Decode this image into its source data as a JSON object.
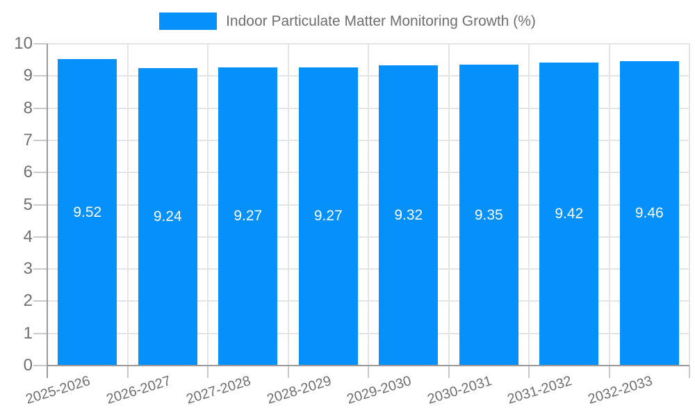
{
  "chart_data": {
    "type": "bar",
    "title": "Indoor Particulate Matter Monitoring Growth (%)",
    "categories": [
      "2025-2026",
      "2026-2027",
      "2027-2028",
      "2028-2029",
      "2029-2030",
      "2030-2031",
      "2031-2032",
      "2032-2033"
    ],
    "values": [
      9.52,
      9.24,
      9.27,
      9.27,
      9.32,
      9.35,
      9.42,
      9.46
    ],
    "value_labels": [
      "9.52",
      "9.24",
      "9.27",
      "9.27",
      "9.32",
      "9.35",
      "9.42",
      "9.46"
    ],
    "xlabel": "",
    "ylabel": "",
    "ylim": [
      0,
      10
    ],
    "ytick_step": 1,
    "ytick_labels": [
      "0",
      "1",
      "2",
      "3",
      "4",
      "5",
      "6",
      "7",
      "8",
      "9",
      "10"
    ],
    "grid": true,
    "legend_position": "top-center",
    "colors": {
      "bar": "#0690FA",
      "bar_value_text": "#ffffff",
      "axis_text": "#6f6f6f",
      "legend_text": "#6f6f6f",
      "gridline": "#e4e4e4",
      "tick": "#c9c9c9",
      "axis_line": "#999999",
      "background": "#ffffff"
    }
  }
}
